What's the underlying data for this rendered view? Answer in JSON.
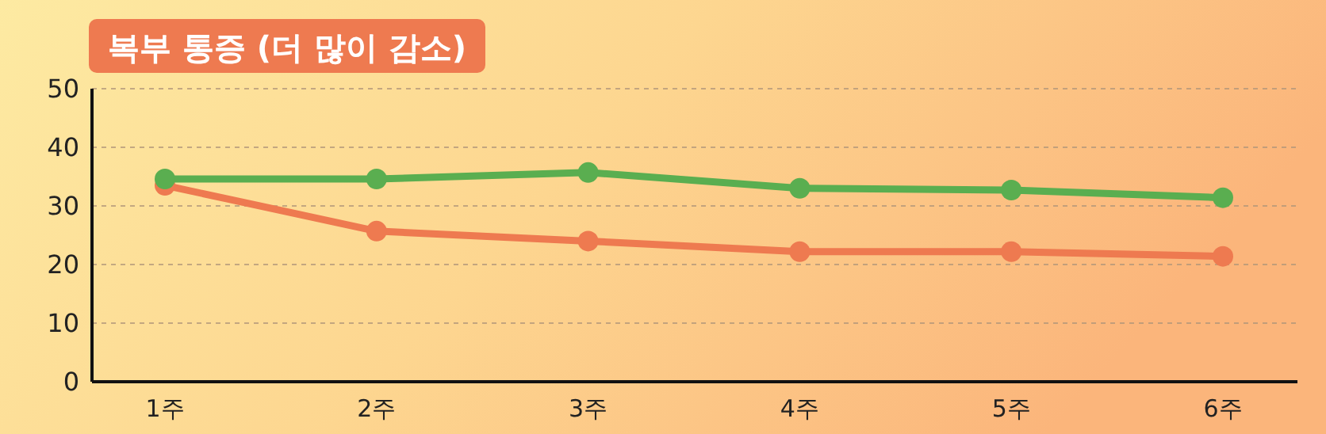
{
  "chart_data": {
    "type": "line",
    "title": "복부 통증 (더 많이 감소)",
    "categories": [
      "1주",
      "2주",
      "3주",
      "4주",
      "5주",
      "6주"
    ],
    "series": [
      {
        "color": "#5aae50",
        "values": [
          34.6,
          34.6,
          35.7,
          33,
          32.7,
          31.4
        ]
      },
      {
        "color": "#ee7a50",
        "values": [
          33.5,
          25.7,
          24,
          22.2,
          22.2,
          21.4
        ]
      }
    ],
    "ylim": [
      0,
      50
    ],
    "yticks": [
      0,
      10,
      20,
      30,
      40,
      50
    ],
    "grid": "y",
    "marker": "circle",
    "line_style": "solid"
  }
}
